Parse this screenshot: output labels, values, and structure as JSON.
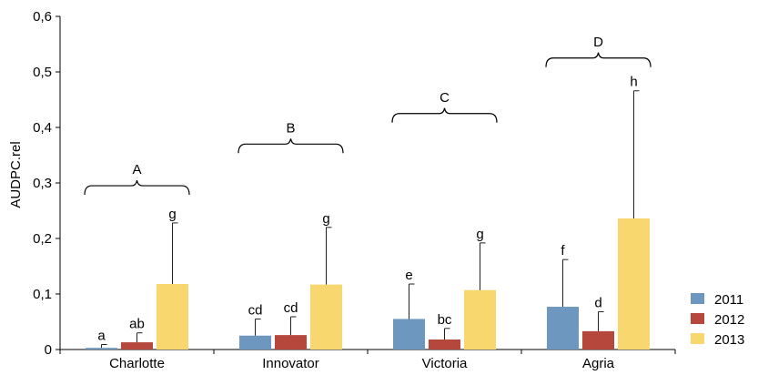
{
  "chart_data": {
    "type": "bar",
    "title": "",
    "xlabel": "",
    "ylabel": "AUDPC.rel",
    "ylim": [
      0,
      0.6
    ],
    "yticks": [
      "0",
      "0,1",
      "0,2",
      "0,3",
      "0,4",
      "0,5",
      "0,6"
    ],
    "ytick_values": [
      0,
      0.1,
      0.2,
      0.3,
      0.4,
      0.5,
      0.6
    ],
    "grid": false,
    "legend_position": "bottom-right",
    "categories": [
      "Charlotte",
      "Innovator",
      "Victoria",
      "Agria"
    ],
    "series": [
      {
        "name": "2011",
        "color": "#6e97c0",
        "values": [
          0.003,
          0.025,
          0.055,
          0.077
        ],
        "errors": [
          0.006,
          0.03,
          0.063,
          0.085
        ],
        "labels": [
          "a",
          "cd",
          "e",
          "f"
        ]
      },
      {
        "name": "2012",
        "color": "#b5473c",
        "values": [
          0.013,
          0.026,
          0.018,
          0.033
        ],
        "errors": [
          0.017,
          0.033,
          0.02,
          0.035
        ],
        "labels": [
          "ab",
          "cd",
          "bc",
          "d"
        ]
      },
      {
        "name": "2013",
        "color": "#f7d76e",
        "values": [
          0.118,
          0.117,
          0.107,
          0.236
        ],
        "errors": [
          0.11,
          0.103,
          0.085,
          0.23
        ],
        "labels": [
          "g",
          "g",
          "g",
          "h"
        ]
      }
    ],
    "group_brackets": [
      {
        "label": "A",
        "level": 0.295
      },
      {
        "label": "B",
        "level": 0.37
      },
      {
        "label": "C",
        "level": 0.425
      },
      {
        "label": "D",
        "level": 0.525
      }
    ]
  }
}
